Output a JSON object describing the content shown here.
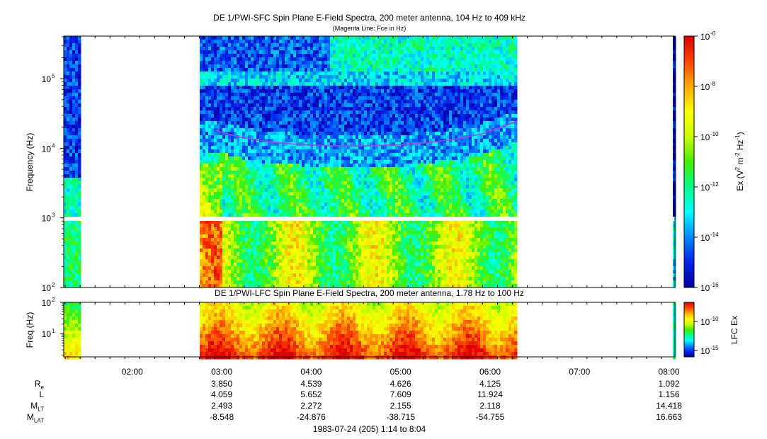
{
  "chart_data": [
    {
      "type": "heatmap",
      "title": "DE 1/PWI-SFC  Spin Plane E-Field Spectra, 200 meter antenna, 104 Hz to 409 kHz",
      "subtitle": "(Magenta Line: Fce in Hz)",
      "ylabel": "Frequency (Hz)",
      "yscale": "log",
      "ylim": [
        100,
        409000
      ],
      "yticks": [
        {
          "base": "10",
          "exp": "5",
          "value": 100000
        },
        {
          "base": "10",
          "exp": "4",
          "value": 10000
        },
        {
          "base": "10",
          "exp": "3",
          "value": 1000
        },
        {
          "base": "10",
          "exp": "2",
          "value": 100
        }
      ],
      "colorbar": {
        "label_prefix": "Ex (V",
        "label_sup1": "2",
        "label_mid": " m",
        "label_sup2": "-2",
        "label_mid2": " Hz",
        "label_sup3": "-1",
        "label_suffix": ")",
        "scale": "log",
        "range": [
          1e-16,
          1e-06
        ],
        "ticks": [
          {
            "base": "10",
            "exp": "-6",
            "value": 1e-06
          },
          {
            "base": "10",
            "exp": "-8",
            "value": 1e-08
          },
          {
            "base": "10",
            "exp": "-10",
            "value": 1e-10
          },
          {
            "base": "10",
            "exp": "-12",
            "value": 1e-12
          },
          {
            "base": "10",
            "exp": "-14",
            "value": 1e-14
          },
          {
            "base": "10",
            "exp": "-16",
            "value": 1e-16
          }
        ]
      },
      "fce_line": {
        "name": "Fce in Hz",
        "color": "#cc33cc",
        "x_hours": [
          2.93,
          3.2,
          3.5,
          3.8,
          4.1,
          4.4,
          4.7,
          5.0,
          5.3,
          5.6,
          5.9,
          6.1,
          6.3
        ],
        "y_hz": [
          18000,
          14500,
          12500,
          11500,
          11000,
          10800,
          10900,
          11200,
          12000,
          13500,
          16000,
          19500,
          24500
        ]
      },
      "data_intervals_hours": [
        [
          1.23,
          1.42
        ],
        [
          2.75,
          6.3
        ],
        [
          8.03,
          8.07
        ]
      ]
    },
    {
      "type": "heatmap",
      "title": "DE 1/PWI-LFC  Spin Plane E-Field Spectra, 200 meter antenna, 1.78 Hz to 100 Hz",
      "ylabel": "Freq (Hz)",
      "yscale": "log",
      "ylim": [
        1.78,
        100
      ],
      "yticks": [
        {
          "base": "10",
          "exp": "2",
          "value": 100
        },
        {
          "base": "10",
          "exp": "1",
          "value": 10
        }
      ],
      "colorbar": {
        "label": "LFC Ex",
        "scale": "log",
        "ticks": [
          {
            "base": "10",
            "exp": "-10",
            "value": 1e-10
          },
          {
            "base": "10",
            "exp": "-15",
            "value": 1e-15
          }
        ]
      },
      "data_intervals_hours": [
        [
          1.23,
          1.42
        ],
        [
          2.75,
          6.3
        ],
        [
          8.03,
          8.07
        ]
      ]
    }
  ],
  "time_axis": {
    "range_hours": [
      1.2333,
      8.0667
    ],
    "ticks": [
      {
        "label": "02:00",
        "hour": 2
      },
      {
        "label": "03:00",
        "hour": 3
      },
      {
        "label": "04:00",
        "hour": 4
      },
      {
        "label": "05:00",
        "hour": 5
      },
      {
        "label": "06:00",
        "hour": 6
      },
      {
        "label": "07:00",
        "hour": 7
      },
      {
        "label": "08:00",
        "hour": 8
      }
    ]
  },
  "ephemeris": {
    "labels": [
      {
        "main": "R",
        "sub": "e"
      },
      {
        "main": "L",
        "sub": ""
      },
      {
        "main": "M",
        "sub": "LT"
      },
      {
        "main": "M",
        "sub": "LAT"
      }
    ],
    "columns": [
      {
        "time": "03:00",
        "values": [
          "3.850",
          "4.059",
          "2.493",
          "-8.548"
        ]
      },
      {
        "time": "04:00",
        "values": [
          "4.539",
          "5.652",
          "2.272",
          "-24.876"
        ]
      },
      {
        "time": "05:00",
        "values": [
          "4.626",
          "7.609",
          "2.155",
          "-38.715"
        ]
      },
      {
        "time": "06:00",
        "values": [
          "4.125",
          "11.924",
          "2.118",
          "-54.755"
        ]
      },
      {
        "time": "08:00",
        "values": [
          "1.092",
          "1.156",
          "14.418",
          "16.663"
        ]
      }
    ]
  },
  "footer": "1983-07-24 (205) 1:14 to 8:04",
  "colors": {
    "background_gap": "#ffffff",
    "colormap": [
      "#0000a0",
      "#0022ee",
      "#0088ff",
      "#00ffff",
      "#00ff88",
      "#44ee00",
      "#ccff00",
      "#ffff00",
      "#ffaa00",
      "#ff4400",
      "#dd0000"
    ]
  }
}
